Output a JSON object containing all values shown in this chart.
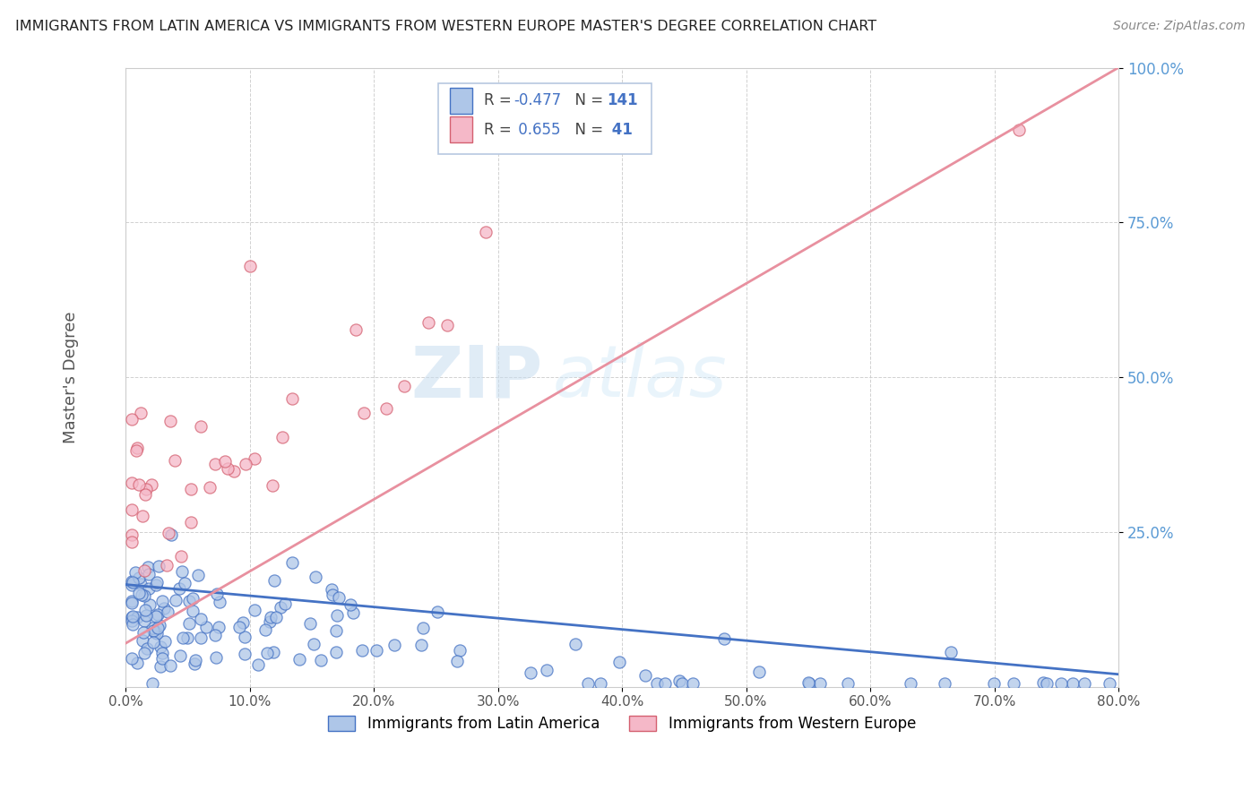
{
  "title": "IMMIGRANTS FROM LATIN AMERICA VS IMMIGRANTS FROM WESTERN EUROPE MASTER'S DEGREE CORRELATION CHART",
  "source": "Source: ZipAtlas.com",
  "ylabel": "Master's Degree",
  "watermark_zip": "ZIP",
  "watermark_atlas": "atlas",
  "xlim": [
    0.0,
    0.8
  ],
  "ylim": [
    0.0,
    1.0
  ],
  "xticks": [
    0.0,
    0.1,
    0.2,
    0.3,
    0.4,
    0.5,
    0.6,
    0.7,
    0.8
  ],
  "xticklabels": [
    "0.0%",
    "10.0%",
    "20.0%",
    "30.0%",
    "40.0%",
    "50.0%",
    "60.0%",
    "70.0%",
    "80.0%"
  ],
  "yticks": [
    0.25,
    0.5,
    0.75,
    1.0
  ],
  "yticklabels": [
    "25.0%",
    "50.0%",
    "75.0%",
    "100.0%"
  ],
  "legend1_label": "Immigrants from Latin America",
  "legend2_label": "Immigrants from Western Europe",
  "R1": -0.477,
  "N1": 141,
  "R2": 0.655,
  "N2": 41,
  "color1": "#aec6e8",
  "color2": "#f5b8c8",
  "line1_color": "#4472c4",
  "line2_color": "#e8909f",
  "edge1_color": "#4472c4",
  "edge2_color": "#d46070",
  "background_color": "#ffffff",
  "grid_color": "#cccccc",
  "legend_box_color": "#f0f4ff",
  "legend_border_color": "#b0b8d0",
  "title_color": "#222222",
  "source_color": "#888888",
  "ylabel_color": "#555555",
  "ytick_color": "#5b9bd5",
  "xtick_color": "#555555"
}
